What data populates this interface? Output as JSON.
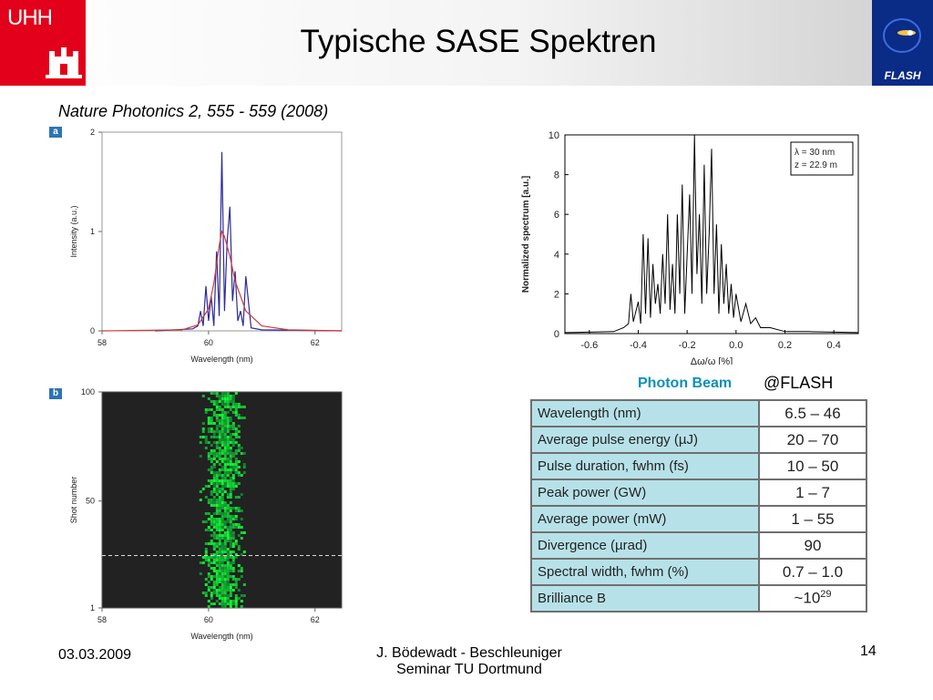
{
  "header": {
    "title": "Typische SASE Spektren",
    "logo_left_text": "UHH",
    "logo_right_text": "FLASH"
  },
  "citation": "Nature Photonics 2, 555 - 559 (2008)",
  "panels": {
    "a": "a",
    "b": "b"
  },
  "chart_data": [
    {
      "id": "panel-a",
      "type": "line",
      "xlabel": "Wavelength (nm)",
      "ylabel": "Intensity (a.u.)",
      "xlim": [
        58,
        62.5
      ],
      "ylim": [
        0,
        2
      ],
      "xticks": [
        "58",
        "60",
        "62"
      ],
      "yticks": [
        "0",
        "1",
        "2"
      ],
      "grid": false,
      "series": [
        {
          "color": "#2b2b9a",
          "x": [
            59.0,
            59.7,
            59.8,
            59.85,
            59.9,
            59.95,
            60.0,
            60.05,
            60.1,
            60.15,
            60.2,
            60.25,
            60.3,
            60.35,
            60.4,
            60.45,
            60.5,
            60.55,
            60.6,
            60.65,
            60.7,
            60.8,
            61.0,
            62.5
          ],
          "y": [
            0,
            0.02,
            0.05,
            0.2,
            0.05,
            0.45,
            0.1,
            0.35,
            0.05,
            0.8,
            0.15,
            1.8,
            0.2,
            0.9,
            1.25,
            0.3,
            0.6,
            0.1,
            0.2,
            0.05,
            0.55,
            0.03,
            0.01,
            0
          ]
        },
        {
          "color": "#d33a3a",
          "x": [
            58.0,
            59.5,
            59.8,
            60.0,
            60.1,
            60.2,
            60.25,
            60.3,
            60.4,
            60.5,
            60.7,
            61.0,
            61.5,
            62.5
          ],
          "y": [
            0,
            0.01,
            0.06,
            0.22,
            0.48,
            0.86,
            1.0,
            0.95,
            0.75,
            0.5,
            0.2,
            0.05,
            0.01,
            0
          ]
        }
      ]
    },
    {
      "id": "panel-b",
      "type": "heatmap",
      "xlabel": "Wavelength (nm)",
      "ylabel": "Shot number",
      "xlim": [
        58,
        62.5
      ],
      "ylim": [
        1,
        100
      ],
      "xticks": [
        "58",
        "60",
        "62"
      ],
      "yticks": [
        "1",
        "50",
        "100"
      ],
      "band_center": 60.25,
      "band_halfwidth": 0.35,
      "dashed_line_shot": 25
    },
    {
      "id": "normalized-spectrum",
      "type": "line",
      "xlabel": "Δω/ω  [%]",
      "ylabel": "Normalized spectrum  [a.u.]",
      "xlim": [
        -0.7,
        0.5
      ],
      "ylim": [
        0,
        10
      ],
      "xticks": [
        "-0.6",
        "-0.4",
        "-0.2",
        "0.0",
        "0.2",
        "0.4"
      ],
      "yticks": [
        "0",
        "2",
        "4",
        "6",
        "8",
        "10"
      ],
      "legend": [
        "λ = 30 nm",
        "z = 22.9 m"
      ],
      "series": [
        {
          "color": "#000000",
          "x": [
            -0.7,
            -0.5,
            -0.46,
            -0.44,
            -0.43,
            -0.42,
            -0.4,
            -0.39,
            -0.38,
            -0.37,
            -0.36,
            -0.35,
            -0.34,
            -0.33,
            -0.32,
            -0.31,
            -0.3,
            -0.29,
            -0.28,
            -0.27,
            -0.26,
            -0.25,
            -0.24,
            -0.23,
            -0.22,
            -0.21,
            -0.2,
            -0.19,
            -0.18,
            -0.17,
            -0.16,
            -0.15,
            -0.14,
            -0.13,
            -0.12,
            -0.11,
            -0.1,
            -0.09,
            -0.08,
            -0.07,
            -0.06,
            -0.05,
            -0.04,
            -0.03,
            -0.02,
            -0.01,
            0.0,
            0.02,
            0.04,
            0.06,
            0.08,
            0.1,
            0.14,
            0.2,
            0.3,
            0.5
          ],
          "y": [
            0.05,
            0.1,
            0.3,
            0.5,
            2.0,
            0.6,
            1.6,
            0.5,
            5.0,
            1.0,
            4.8,
            0.8,
            3.5,
            1.5,
            2.5,
            1.0,
            4.0,
            1.5,
            6.0,
            1.2,
            3.5,
            1.0,
            6.0,
            2.0,
            7.5,
            1.0,
            4.0,
            7.0,
            2.0,
            10.0,
            3.0,
            6.0,
            1.5,
            8.5,
            2.0,
            5.0,
            9.3,
            2.0,
            5.5,
            1.0,
            4.5,
            1.5,
            3.5,
            1.0,
            2.5,
            0.8,
            2.0,
            0.6,
            1.5,
            0.5,
            0.8,
            0.3,
            0.3,
            0.1,
            0.1,
            0.05
          ]
        }
      ]
    }
  ],
  "photon_beam": {
    "title": "Photon Beam",
    "label": "@FLASH",
    "rows": [
      {
        "param": "Wavelength (nm)",
        "value": "6.5 – 46"
      },
      {
        "param": "Average pulse energy (µJ)",
        "value": "20 – 70"
      },
      {
        "param": "Pulse duration, fwhm (fs)",
        "value": "10 – 50"
      },
      {
        "param": "Peak power (GW)",
        "value": "1 – 7"
      },
      {
        "param": "Average power (mW)",
        "value": "1 – 55"
      },
      {
        "param": "Divergence (µrad)",
        "value": "90"
      },
      {
        "param": "Spectral width, fwhm (%)",
        "value": "0.7 – 1.0"
      },
      {
        "param": "Brilliance B",
        "value": "~10",
        "sup": "29"
      }
    ]
  },
  "footer": {
    "date": "03.03.2009",
    "author_line1": "J. Bödewadt - Beschleuniger",
    "author_line2": "Seminar TU Dortmund",
    "page": "14"
  }
}
